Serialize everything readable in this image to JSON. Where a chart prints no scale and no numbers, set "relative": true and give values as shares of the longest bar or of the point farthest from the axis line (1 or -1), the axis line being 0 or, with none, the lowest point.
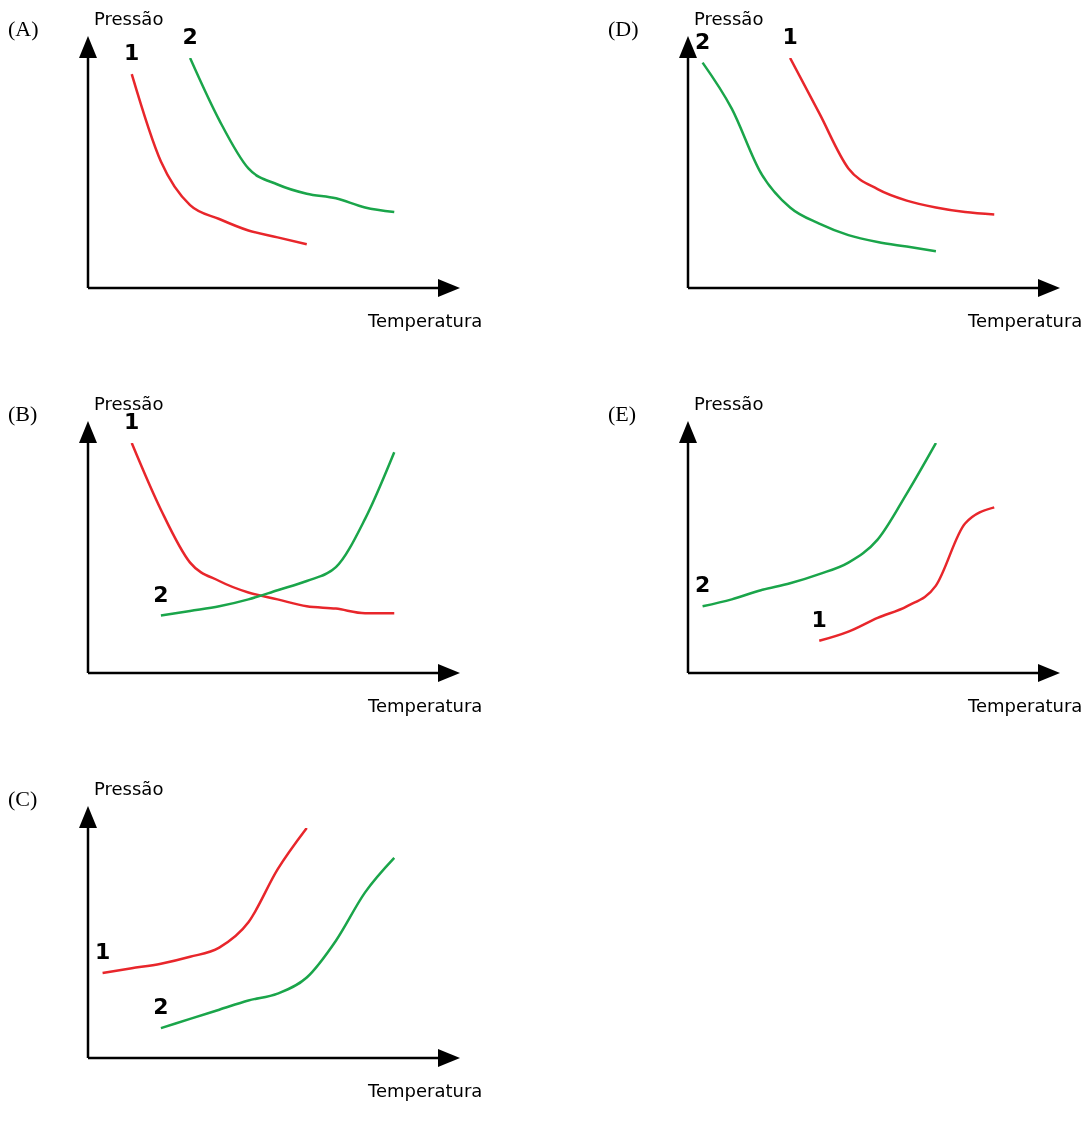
{
  "chart_data": [
    {
      "type": "line",
      "title": "(A)",
      "xlabel": "Temperatura",
      "ylabel": "Pressão",
      "relative": true,
      "legend": false,
      "marker": "none",
      "line_style": "solid",
      "categories": [
        null,
        null,
        null,
        null,
        null,
        null,
        null,
        null,
        null,
        null,
        null,
        null
      ],
      "series": [
        {
          "name": "1",
          "color": "#e8262b",
          "values": [
            null,
            0.93,
            0.55,
            0.36,
            0.3,
            0.25,
            0.22,
            0.19,
            null,
            null,
            null,
            null
          ]
        },
        {
          "name": "2",
          "color": "#1aa54a",
          "values": [
            null,
            null,
            null,
            1,
            0.73,
            0.52,
            0.45,
            0.41,
            0.39,
            0.35,
            0.33,
            null
          ]
        }
      ]
    },
    {
      "type": "line",
      "title": "(D)",
      "xlabel": "Temperatura",
      "ylabel": "Pressão",
      "relative": true,
      "legend": false,
      "marker": "none",
      "line_style": "solid",
      "categories": [
        null,
        null,
        null,
        null,
        null,
        null,
        null,
        null,
        null,
        null,
        null,
        null
      ],
      "series": [
        {
          "name": "1",
          "color": "#e8262b",
          "values": [
            null,
            null,
            null,
            1,
            0.76,
            0.52,
            0.43,
            0.38,
            0.35,
            0.33,
            0.32,
            null
          ]
        },
        {
          "name": "2",
          "color": "#1aa54a",
          "values": [
            0.98,
            0.78,
            0.5,
            0.35,
            0.28,
            0.23,
            0.2,
            0.18,
            0.16,
            null,
            null,
            null
          ]
        }
      ]
    },
    {
      "type": "line",
      "title": "(B)",
      "xlabel": "Temperatura",
      "ylabel": "Pressão",
      "relative": true,
      "legend": false,
      "marker": "none",
      "line_style": "solid",
      "categories": [
        null,
        null,
        null,
        null,
        null,
        null,
        null,
        null,
        null,
        null,
        null,
        null
      ],
      "series": [
        {
          "name": "1",
          "color": "#e8262b",
          "values": [
            null,
            1,
            0.71,
            0.48,
            0.4,
            0.35,
            0.32,
            0.29,
            0.28,
            0.26,
            0.26,
            null
          ]
        },
        {
          "name": "2",
          "color": "#1aa54a",
          "values": [
            null,
            null,
            0.25,
            0.27,
            0.29,
            0.32,
            0.36,
            0.4,
            0.46,
            0.67,
            0.96,
            null
          ]
        }
      ]
    },
    {
      "type": "line",
      "title": "(E)",
      "xlabel": "Temperatura",
      "ylabel": "Pressão",
      "relative": true,
      "legend": false,
      "marker": "none",
      "line_style": "solid",
      "categories": [
        null,
        null,
        null,
        null,
        null,
        null,
        null,
        null,
        null,
        null,
        null,
        null
      ],
      "series": [
        {
          "name": "1",
          "color": "#e8262b",
          "values": [
            null,
            null,
            null,
            null,
            0.14,
            0.18,
            0.24,
            0.29,
            0.38,
            0.65,
            0.72,
            null
          ]
        },
        {
          "name": "2",
          "color": "#1aa54a",
          "values": [
            0.29,
            0.32,
            0.36,
            0.39,
            0.43,
            0.48,
            0.58,
            0.78,
            1,
            null,
            null,
            null
          ]
        }
      ]
    },
    {
      "type": "line",
      "title": "(C)",
      "xlabel": "Temperatura",
      "ylabel": "Pressão",
      "relative": true,
      "legend": false,
      "marker": "none",
      "line_style": "solid",
      "categories": [
        null,
        null,
        null,
        null,
        null,
        null,
        null,
        null,
        null,
        null,
        null,
        null
      ],
      "series": [
        {
          "name": "1",
          "color": "#e8262b",
          "values": [
            0.37,
            0.39,
            0.41,
            0.44,
            0.48,
            0.59,
            0.82,
            1,
            null,
            null,
            null,
            null
          ]
        },
        {
          "name": "2",
          "color": "#1aa54a",
          "values": [
            null,
            null,
            0.13,
            0.17,
            0.21,
            0.25,
            0.28,
            0.35,
            0.51,
            0.72,
            0.87,
            null
          ]
        }
      ]
    }
  ]
}
